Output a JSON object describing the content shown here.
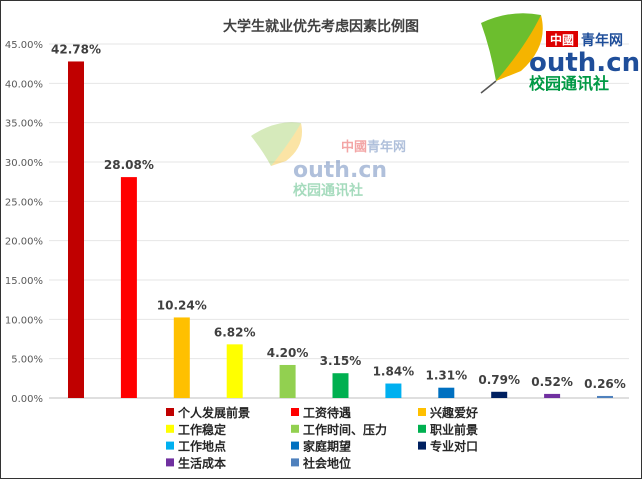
{
  "chart_data": {
    "type": "bar",
    "title": "大学生就业优先考虑因素比例图",
    "categories": [
      "个人发展前景",
      "工资待遇",
      "兴趣爱好",
      "工作稳定",
      "工作时间、压力",
      "职业前景",
      "工作地点",
      "家庭期望",
      "专业对口",
      "生活成本",
      "社会地位"
    ],
    "values": [
      42.78,
      28.08,
      10.24,
      6.82,
      4.2,
      3.15,
      1.84,
      1.31,
      0.79,
      0.52,
      0.26
    ],
    "value_labels": [
      "42.78%",
      "28.08%",
      "10.24%",
      "6.82%",
      "4.20%",
      "3.15%",
      "1.84%",
      "1.31%",
      "0.79%",
      "0.52%",
      "0.26%"
    ],
    "colors": [
      "#C00000",
      "#FF0000",
      "#FFC000",
      "#FFFF00",
      "#92D050",
      "#00B050",
      "#00B0F0",
      "#0070C0",
      "#002060",
      "#7030A0",
      "#4F81BD"
    ],
    "ylim": [
      0,
      45
    ],
    "yticks": [
      "0.00%",
      "5.00%",
      "10.00%",
      "15.00%",
      "20.00%",
      "25.00%",
      "30.00%",
      "35.00%",
      "40.00%",
      "45.00%"
    ],
    "grid": true,
    "legend_position": "bottom",
    "xlabel": "",
    "ylabel": ""
  },
  "logo": {
    "line1_red": "中國",
    "line1": "青年网",
    "line2": "outh.cn",
    "line3": "校园通讯社"
  }
}
